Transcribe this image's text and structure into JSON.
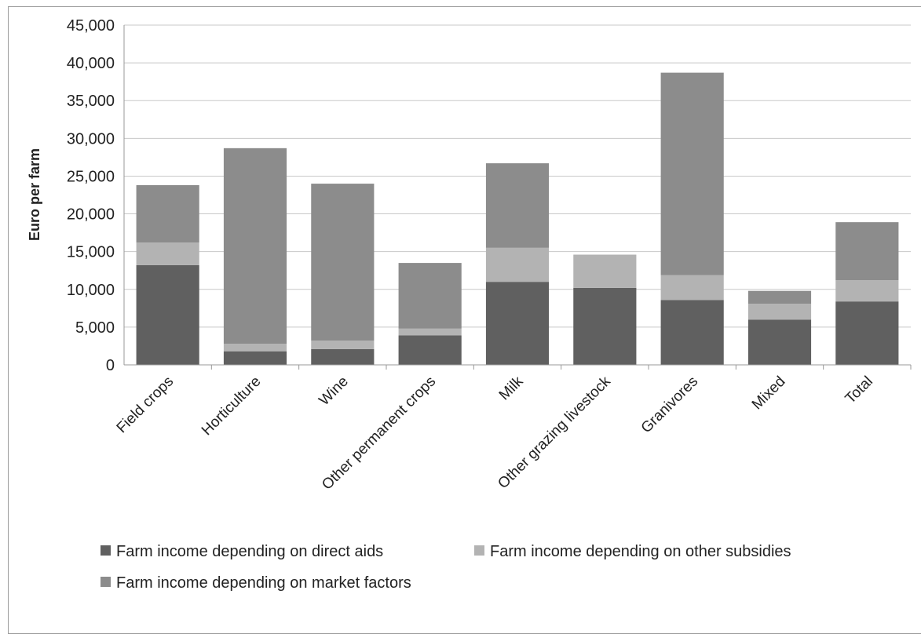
{
  "chart_data": {
    "type": "bar",
    "stacked": true,
    "title": "",
    "ylabel": "Euro per farm",
    "xlabel": "",
    "ylim": [
      0,
      45000
    ],
    "yticks": [
      0,
      5000,
      10000,
      15000,
      20000,
      25000,
      30000,
      35000,
      40000,
      45000
    ],
    "ytick_labels": [
      "0",
      "5,000",
      "10,000",
      "15,000",
      "20,000",
      "25,000",
      "30,000",
      "35,000",
      "40,000",
      "45,000"
    ],
    "grid": true,
    "legend_position": "bottom",
    "categories": [
      "Field crops",
      "Horticulture",
      "Wine",
      "Other permanent crops",
      "Milk",
      "Other grazing livestock",
      "Granivores",
      "Mixed",
      "Total"
    ],
    "series": [
      {
        "name": "Farm income depending on direct aids",
        "color": "#606060",
        "values": [
          13200,
          1800,
          2100,
          3900,
          11000,
          10200,
          8600,
          6000,
          8400
        ]
      },
      {
        "name": "Farm income depending on other subsidies",
        "color": "#b3b3b3",
        "values": [
          3000,
          1000,
          1100,
          900,
          4500,
          4400,
          3300,
          2100,
          2800
        ]
      },
      {
        "name": "Farm income depending on market factors",
        "color": "#8c8c8c",
        "values": [
          7600,
          25900,
          20800,
          8700,
          11200,
          0,
          26800,
          1700,
          7700
        ]
      }
    ]
  }
}
